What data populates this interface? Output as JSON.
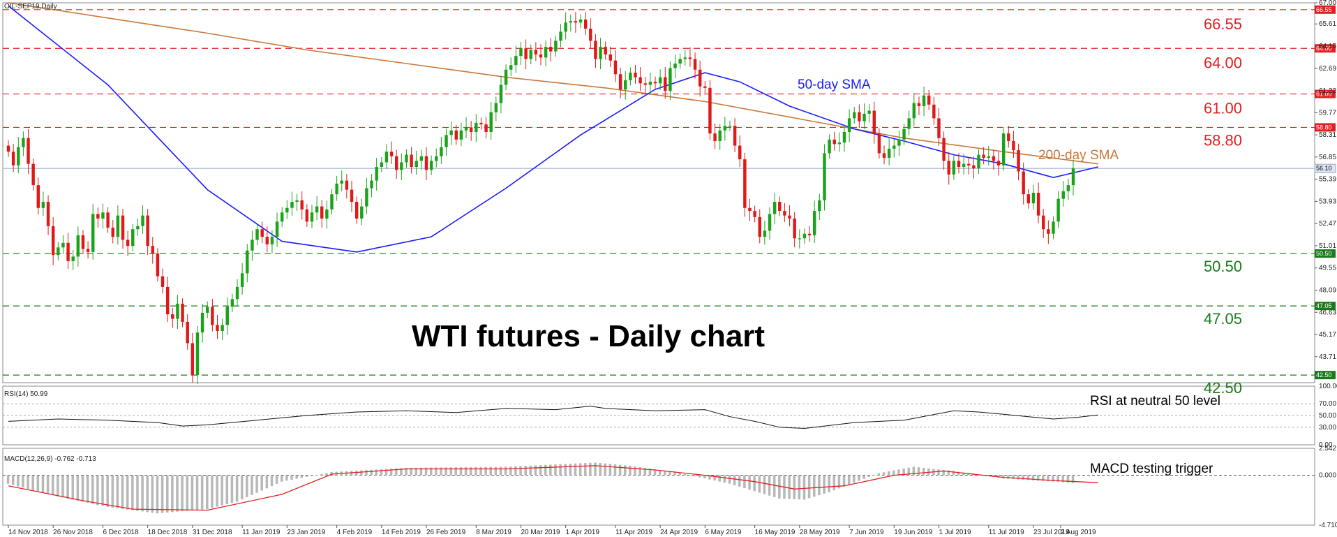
{
  "chart_data": {
    "type": "candlestick",
    "symbol_label": "OIL-SEP19,Daily",
    "title": "WTI futures - Daily chart",
    "main_panel": {
      "ylim": [
        42.0,
        67.0
      ],
      "y_ticks": [
        67.0,
        65.61,
        64.15,
        62.69,
        61.22,
        59.77,
        58.31,
        56.85,
        55.39,
        53.93,
        52.47,
        51.01,
        49.55,
        48.09,
        46.63,
        45.17,
        43.71
      ],
      "date_ticks": [
        "14 Nov 2018",
        "26 Nov 2018",
        "6 Dec 2018",
        "18 Dec 2018",
        "31 Dec 2018",
        "11 Jan 2019",
        "23 Jan 2019",
        "4 Feb 2019",
        "14 Feb 2019",
        "26 Feb 2019",
        "8 Mar 2019",
        "20 Mar 2019",
        "1 Apr 2019",
        "11 Apr 2019",
        "24 Apr 2019",
        "6 May 2019",
        "16 May 2019",
        "28 May 2019",
        "7 Jun 2019",
        "19 Jun 2019",
        "1 Jul 2019",
        "11 Jul 2019",
        "23 Jul 2019",
        "2 Aug 2019"
      ],
      "levels": [
        {
          "value": 66.55,
          "label": "66.55",
          "tag": "66.55",
          "color": "#e02020"
        },
        {
          "value": 64.0,
          "label": "64.00",
          "tag": "64.00",
          "color": "#e02020"
        },
        {
          "value": 61.0,
          "label": "61.00",
          "tag": "61.00",
          "color": "#e02020"
        },
        {
          "value": 58.8,
          "label": "58.80",
          "tag": "58.80",
          "color": "#e02020"
        },
        {
          "value": 50.5,
          "label": "50.50",
          "tag": "50.50",
          "color": "#1a7a1a"
        },
        {
          "value": 47.05,
          "label": "47.05",
          "tag": "47.05",
          "color": "#1a7a1a"
        },
        {
          "value": 42.5,
          "label": "42.50",
          "tag": "42.50",
          "color": "#1a7a1a"
        }
      ],
      "current_price": {
        "value": 56.1,
        "tag": "56.10"
      },
      "sma_labels": {
        "sma50": "50-day SMA",
        "sma200": "200-day SMA"
      },
      "candles_close": [
        57.2,
        56.3,
        57.5,
        58.1,
        56.4,
        55.0,
        53.5,
        53.9,
        52.3,
        50.4,
        50.9,
        51.2,
        50.0,
        50.3,
        51.7,
        50.8,
        50.6,
        53.1,
        52.8,
        53.2,
        52.2,
        51.6,
        53.0,
        51.4,
        51.0,
        52.1,
        52.3,
        53.0,
        51.0,
        50.5,
        49.0,
        48.3,
        46.5,
        46.2,
        47.2,
        46.0,
        44.6,
        42.5,
        45.3,
        46.6,
        47.0,
        45.8,
        45.4,
        45.8,
        47.0,
        47.5,
        48.3,
        49.2,
        50.7,
        51.4,
        52.1,
        51.6,
        51.1,
        51.6,
        52.6,
        53.2,
        53.5,
        53.9,
        54.0,
        53.4,
        52.6,
        53.2,
        53.6,
        52.8,
        53.4,
        54.4,
        55.1,
        55.3,
        54.7,
        53.9,
        52.8,
        53.6,
        54.8,
        55.3,
        56.2,
        56.5,
        57.2,
        56.9,
        56.0,
        56.5,
        57.0,
        56.2,
        56.6,
        56.9,
        56.0,
        56.6,
        56.9,
        57.5,
        58.3,
        58.6,
        58.0,
        58.6,
        58.8,
        58.5,
        59.1,
        59.0,
        58.5,
        59.8,
        60.4,
        61.6,
        62.6,
        62.9,
        63.5,
        64.0,
        63.3,
        63.9,
        63.6,
        63.4,
        64.1,
        63.8,
        64.5,
        65.1,
        65.7,
        65.8,
        65.7,
        65.9,
        65.3,
        64.5,
        63.3,
        64.1,
        63.6,
        63.2,
        62.3,
        61.3,
        61.9,
        62.4,
        62.1,
        61.7,
        61.6,
        61.8,
        61.7,
        62.1,
        61.2,
        62.7,
        63.0,
        63.3,
        63.4,
        63.3,
        62.6,
        61.5,
        61.4,
        58.4,
        57.9,
        58.6,
        58.9,
        58.9,
        57.6,
        56.7,
        53.5,
        53.3,
        52.9,
        51.6,
        52.0,
        53.1,
        53.9,
        53.3,
        53.0,
        52.8,
        51.5,
        51.5,
        51.8,
        51.7,
        53.3,
        54.0,
        57.1,
        58.0,
        57.7,
        57.8,
        58.5,
        59.4,
        59.8,
        59.2,
        59.7,
        59.9,
        58.4,
        57.1,
        56.8,
        57.4,
        57.6,
        58.0,
        58.7,
        59.4,
        60.4,
        60.2,
        60.9,
        60.3,
        59.4,
        58.1,
        56.6,
        55.7,
        56.6,
        56.2,
        56.4,
        56.3,
        56.1,
        57.0,
        56.8,
        56.9,
        56.6,
        56.3,
        58.4,
        57.9,
        57.3,
        55.9,
        54.4,
        53.8,
        54.5,
        53.0,
        52.1,
        51.8,
        52.6,
        54.1,
        54.6,
        55.0,
        56.1
      ],
      "sma50_points": [
        [
          0,
          66.8
        ],
        [
          20,
          61.6
        ],
        [
          40,
          54.7
        ],
        [
          55,
          51.3
        ],
        [
          70,
          50.6
        ],
        [
          85,
          51.6
        ],
        [
          100,
          54.8
        ],
        [
          115,
          58.3
        ],
        [
          130,
          61.3
        ],
        [
          140,
          62.4
        ],
        [
          147,
          61.8
        ],
        [
          157,
          60.2
        ],
        [
          170,
          58.7
        ],
        [
          180,
          57.9
        ],
        [
          190,
          57.0
        ],
        [
          200,
          56.4
        ],
        [
          210,
          55.5
        ],
        [
          219,
          56.2
        ]
      ],
      "sma200_points": [
        [
          0,
          67.0
        ],
        [
          20,
          66.0
        ],
        [
          40,
          65.0
        ],
        [
          60,
          63.9
        ],
        [
          80,
          63.0
        ],
        [
          100,
          62.1
        ],
        [
          120,
          61.4
        ],
        [
          140,
          60.5
        ],
        [
          160,
          59.3
        ],
        [
          180,
          58.1
        ],
        [
          200,
          57.2
        ],
        [
          219,
          56.4
        ]
      ]
    },
    "rsi_panel": {
      "label": "RSI(14) 50.99",
      "note": "RSI at neutral 50 level",
      "ylim": [
        0,
        100
      ],
      "y_ticks": [
        "100.00",
        "70.00",
        "50.00",
        "30.00",
        "0.00"
      ],
      "points": [
        [
          0,
          40
        ],
        [
          10,
          44
        ],
        [
          20,
          42
        ],
        [
          30,
          38
        ],
        [
          35,
          32
        ],
        [
          40,
          34
        ],
        [
          50,
          42
        ],
        [
          60,
          50
        ],
        [
          70,
          56
        ],
        [
          80,
          58
        ],
        [
          90,
          55
        ],
        [
          100,
          62
        ],
        [
          110,
          60
        ],
        [
          117,
          66
        ],
        [
          120,
          62
        ],
        [
          130,
          58
        ],
        [
          140,
          60
        ],
        [
          145,
          48
        ],
        [
          150,
          40
        ],
        [
          155,
          30
        ],
        [
          160,
          28
        ],
        [
          170,
          38
        ],
        [
          180,
          42
        ],
        [
          185,
          50
        ],
        [
          190,
          58
        ],
        [
          195,
          56
        ],
        [
          200,
          52
        ],
        [
          205,
          48
        ],
        [
          210,
          44
        ],
        [
          215,
          47
        ],
        [
          219,
          51
        ]
      ]
    },
    "macd_panel": {
      "label": "MACD(12,26,9) -0.762 -0.713",
      "note": "MACD testing trigger",
      "ylim": [
        -4.71,
        2.542
      ],
      "y_ticks": [
        "2.542",
        "0.000",
        "-4.710"
      ],
      "hist_points": [
        [
          0,
          -0.8
        ],
        [
          10,
          -2.0
        ],
        [
          20,
          -3.0
        ],
        [
          30,
          -3.6
        ],
        [
          40,
          -3.2
        ],
        [
          46,
          -2.5
        ],
        [
          55,
          -0.6
        ],
        [
          65,
          0.3
        ],
        [
          80,
          0.7
        ],
        [
          100,
          0.8
        ],
        [
          118,
          1.2
        ],
        [
          125,
          0.9
        ],
        [
          135,
          0.2
        ],
        [
          145,
          -0.8
        ],
        [
          155,
          -2.2
        ],
        [
          160,
          -2.3
        ],
        [
          165,
          -1.6
        ],
        [
          175,
          0.2
        ],
        [
          182,
          0.8
        ],
        [
          190,
          0.4
        ],
        [
          200,
          -0.3
        ],
        [
          210,
          -0.6
        ],
        [
          219,
          -0.9
        ]
      ],
      "signal_points": [
        [
          0,
          -1.0
        ],
        [
          15,
          -2.4
        ],
        [
          25,
          -3.2
        ],
        [
          40,
          -3.3
        ],
        [
          55,
          -1.8
        ],
        [
          65,
          0.1
        ],
        [
          80,
          0.6
        ],
        [
          100,
          0.6
        ],
        [
          118,
          0.9
        ],
        [
          130,
          0.5
        ],
        [
          140,
          0.0
        ],
        [
          150,
          -0.6
        ],
        [
          158,
          -1.3
        ],
        [
          168,
          -1.0
        ],
        [
          178,
          0.0
        ],
        [
          188,
          0.4
        ],
        [
          200,
          -0.2
        ],
        [
          210,
          -0.5
        ],
        [
          219,
          -0.7
        ]
      ]
    }
  }
}
